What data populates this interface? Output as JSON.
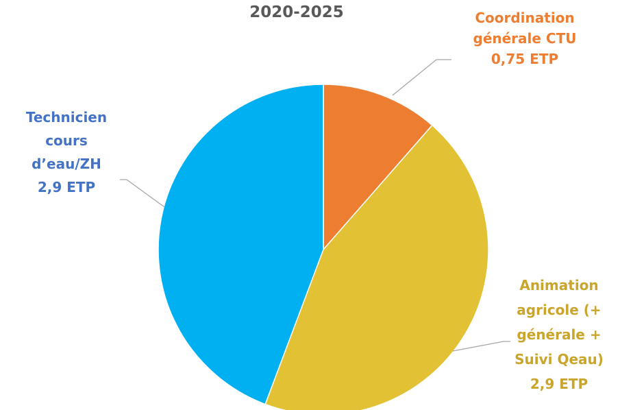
{
  "chart_data": {
    "type": "pie",
    "title": "2020-2025",
    "series": [
      {
        "values": [
          0.75,
          2.9,
          2.9
        ],
        "labels": [
          [
            "Coordination",
            "générale CTU",
            "0,75 ETP"
          ],
          [
            "Animation",
            "agricole (+",
            "générale +",
            "Suivi Qeau)",
            "2,9 ETP"
          ],
          [
            "Technicien",
            "cours",
            "d’eau/ZH",
            "2,9 ETP"
          ]
        ],
        "colors": [
          "#ED7D31",
          "#E2C234",
          "#00B0F0"
        ],
        "label_colors": [
          "#ED7D31",
          "#C9A52B",
          "#4472C4"
        ]
      }
    ],
    "start_angle": "12 o'clock",
    "direction": "clockwise",
    "leader_color": "#A6A6A6",
    "legend": "none"
  }
}
